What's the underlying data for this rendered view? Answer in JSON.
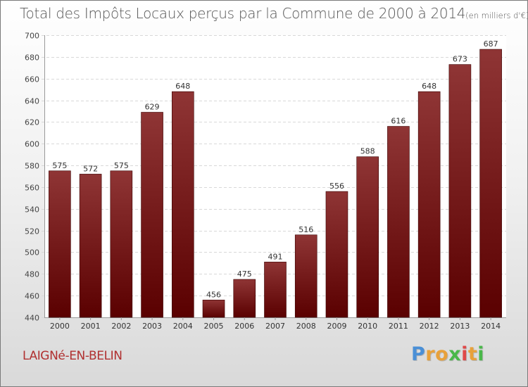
{
  "chart_data": {
    "type": "bar",
    "title": "Total des Impôts Locaux perçus par la Commune de 2000 à 2014",
    "unit_label": "(en milliers d'€)",
    "categories": [
      "2000",
      "2001",
      "2002",
      "2003",
      "2004",
      "2005",
      "2006",
      "2007",
      "2008",
      "2009",
      "2010",
      "2011",
      "2012",
      "2013",
      "2014"
    ],
    "values": [
      575,
      572,
      575,
      629,
      648,
      456,
      475,
      491,
      516,
      556,
      588,
      616,
      648,
      673,
      687
    ],
    "ylim": [
      440,
      700
    ],
    "ytick_step": 20,
    "xlabel": "",
    "ylabel": "",
    "grid": true,
    "bar_color_top": "#8f3535",
    "bar_color_bottom": "#5a0000"
  },
  "footer": {
    "commune": "LAIGNé-EN-BELIN",
    "logo_letters": [
      "P",
      "r",
      "o",
      "x",
      "i",
      "t",
      "i"
    ],
    "logo_colors": [
      "#4a8fd6",
      "#e8a13a",
      "#e8a13a",
      "#4ab84a",
      "#e04848",
      "#e8a13a",
      "#4ab84a"
    ]
  }
}
